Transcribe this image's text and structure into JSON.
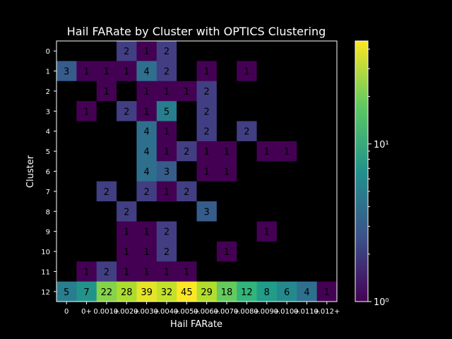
{
  "chart_data": {
    "type": "heatmap",
    "title": "Hail FARate by Cluster with OPTICS Clustering",
    "xlabel": "Hail FARate",
    "ylabel": "Cluster",
    "x_tick_labels": [
      "0",
      "0+",
      "0.001+",
      "0.002+",
      "0.003+",
      "0.004+",
      "0.005+",
      "0.006+",
      "0.007+",
      "0.008+",
      "0.009+",
      "0.010+",
      "0.011+",
      "0.012+"
    ],
    "y_tick_labels": [
      "0",
      "1",
      "2",
      "3",
      "4",
      "5",
      "6",
      "7",
      "8",
      "9",
      "10",
      "11",
      "12"
    ],
    "values": [
      [
        0,
        0,
        0,
        2,
        1,
        2,
        0,
        0,
        0,
        0,
        0,
        0,
        0,
        0
      ],
      [
        3,
        1,
        1,
        1,
        4,
        2,
        0,
        1,
        0,
        1,
        0,
        0,
        0,
        0
      ],
      [
        0,
        0,
        1,
        0,
        1,
        1,
        1,
        2,
        0,
        0,
        0,
        0,
        0,
        0
      ],
      [
        0,
        1,
        0,
        2,
        1,
        5,
        0,
        2,
        0,
        0,
        0,
        0,
        0,
        0
      ],
      [
        0,
        0,
        0,
        0,
        4,
        1,
        0,
        2,
        0,
        2,
        0,
        0,
        0,
        0
      ],
      [
        0,
        0,
        0,
        0,
        4,
        1,
        2,
        1,
        1,
        0,
        1,
        1,
        0,
        0
      ],
      [
        0,
        0,
        0,
        0,
        4,
        3,
        0,
        1,
        1,
        0,
        0,
        0,
        0,
        0
      ],
      [
        0,
        0,
        2,
        0,
        2,
        1,
        2,
        0,
        0,
        0,
        0,
        0,
        0,
        0
      ],
      [
        0,
        0,
        0,
        2,
        0,
        0,
        0,
        3,
        0,
        0,
        0,
        0,
        0,
        0
      ],
      [
        0,
        0,
        0,
        1,
        1,
        2,
        0,
        0,
        0,
        0,
        1,
        0,
        0,
        0
      ],
      [
        0,
        0,
        0,
        1,
        1,
        2,
        0,
        0,
        1,
        0,
        0,
        0,
        0,
        0
      ],
      [
        0,
        1,
        2,
        1,
        1,
        1,
        1,
        0,
        0,
        0,
        0,
        0,
        0,
        0
      ],
      [
        5,
        7,
        22,
        28,
        39,
        32,
        45,
        29,
        18,
        12,
        8,
        6,
        4,
        1
      ]
    ],
    "color_scale": "log",
    "colormap": "viridis",
    "vmin": 1,
    "vmax": 45,
    "colorbar_ticks": [
      {
        "value": 1,
        "label": "10⁰"
      },
      {
        "value": 10,
        "label": "10¹"
      }
    ],
    "zero_color": "#000000",
    "background": "#000000",
    "text_color": "#ffffff",
    "grid": false
  }
}
